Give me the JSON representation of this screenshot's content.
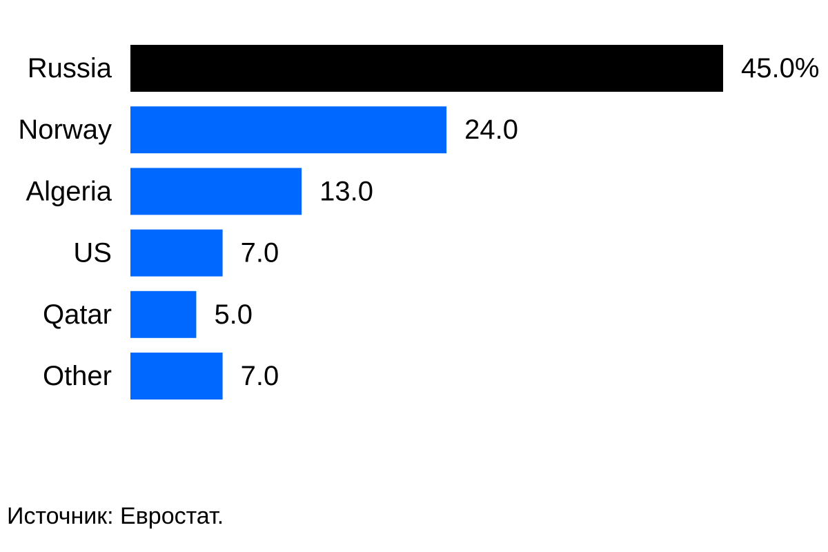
{
  "chart_data": {
    "type": "bar",
    "orientation": "horizontal",
    "categories": [
      "Russia",
      "Norway",
      "Algeria",
      "US",
      "Qatar",
      "Other"
    ],
    "values": [
      45.0,
      24.0,
      13.0,
      7.0,
      5.0,
      7.0
    ],
    "value_labels": [
      "45.0%",
      "24.0",
      "13.0",
      "7.0",
      "5.0",
      "7.0"
    ],
    "unit": "%",
    "xlim": [
      0,
      45
    ],
    "grid": false,
    "title": "",
    "xlabel": "",
    "ylabel": "",
    "colors": {
      "highlight": "#000000",
      "default": "#0068ff"
    },
    "highlight_category": "Russia"
  },
  "source": {
    "text": "Источник: Евростат."
  }
}
